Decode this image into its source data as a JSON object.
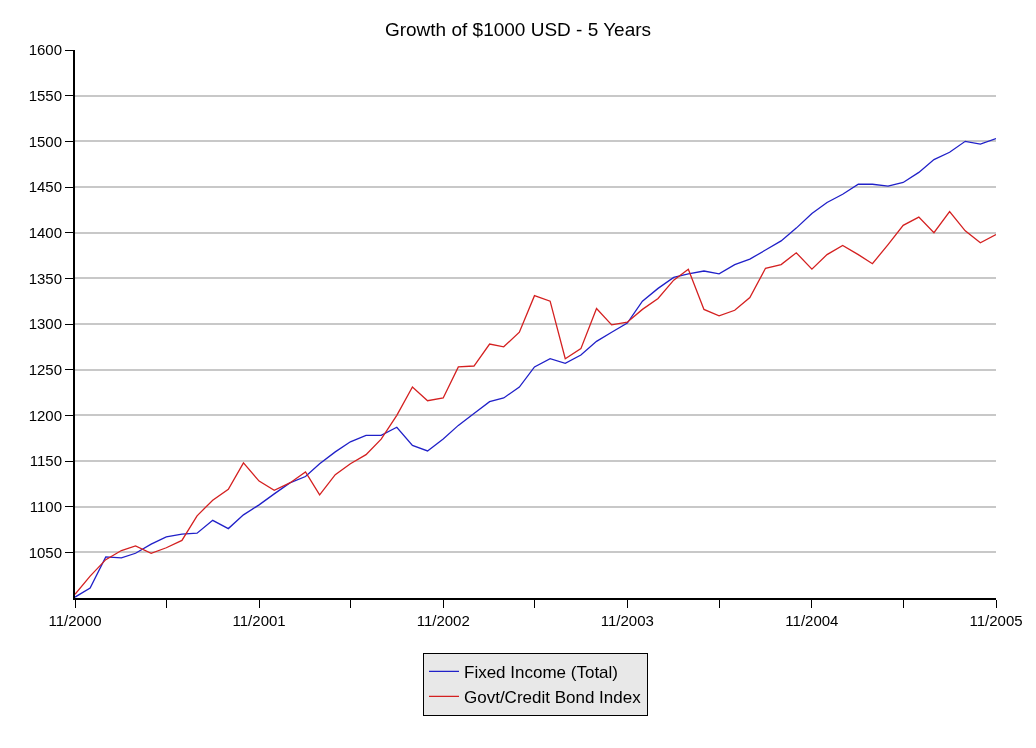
{
  "chart_data": {
    "type": "line",
    "title": "Growth of $1000 USD - 5 Years",
    "x": [
      "2000-11",
      "2000-12",
      "2001-01",
      "2001-02",
      "2001-03",
      "2001-04",
      "2001-05",
      "2001-06",
      "2001-07",
      "2001-08",
      "2001-09",
      "2001-10",
      "2001-11",
      "2001-12",
      "2002-01",
      "2002-02",
      "2002-03",
      "2002-04",
      "2002-05",
      "2002-06",
      "2002-07",
      "2002-08",
      "2002-09",
      "2002-10",
      "2002-11",
      "2002-12",
      "2003-01",
      "2003-02",
      "2003-03",
      "2003-04",
      "2003-05",
      "2003-06",
      "2003-07",
      "2003-08",
      "2003-09",
      "2003-10",
      "2003-11",
      "2003-12",
      "2004-01",
      "2004-02",
      "2004-03",
      "2004-04",
      "2004-05",
      "2004-06",
      "2004-07",
      "2004-08",
      "2004-09",
      "2004-10",
      "2004-11",
      "2004-12",
      "2005-01",
      "2005-02",
      "2005-03",
      "2005-04",
      "2005-05",
      "2005-06",
      "2005-07",
      "2005-08",
      "2005-09",
      "2005-10",
      "2005-11"
    ],
    "series": [
      {
        "name": "Fixed Income (Total)",
        "color": "#2020c8",
        "values": [
          1001,
          1011,
          1045,
          1044,
          1049,
          1059,
          1067,
          1070,
          1071,
          1085,
          1076,
          1091,
          1102,
          1114,
          1126,
          1133,
          1147,
          1160,
          1171,
          1178,
          1178,
          1187,
          1167,
          1161,
          1174,
          1189,
          1202,
          1215,
          1219,
          1231,
          1253,
          1262,
          1257,
          1266,
          1281,
          1291,
          1301,
          1325,
          1339,
          1351,
          1355,
          1358,
          1355,
          1365,
          1371,
          1381,
          1391,
          1405,
          1421,
          1433,
          1442,
          1453,
          1453,
          1451,
          1455,
          1466,
          1480,
          1488,
          1500,
          1497,
          1503
        ]
      },
      {
        "name": "Govt/Credit Bond Index",
        "color": "#d42020",
        "values": [
          1004,
          1024,
          1042,
          1052,
          1057,
          1049,
          1055,
          1063,
          1090,
          1107,
          1119,
          1148,
          1128,
          1118,
          1126,
          1138,
          1113,
          1135,
          1147,
          1157,
          1174,
          1200,
          1231,
          1216,
          1219,
          1253,
          1254,
          1278,
          1275,
          1291,
          1331,
          1325,
          1262,
          1273,
          1317,
          1299,
          1302,
          1316,
          1328,
          1348,
          1360,
          1316,
          1309,
          1315,
          1329,
          1361,
          1365,
          1378,
          1360,
          1376,
          1386,
          1376,
          1366,
          1387,
          1408,
          1417,
          1400,
          1423,
          1402,
          1389,
          1398
        ]
      }
    ],
    "xlim": [
      "2000-11",
      "2005-11"
    ],
    "xticks": [
      {
        "value": "2000-11",
        "label": "11/2000"
      },
      {
        "value": "2001-05",
        "label": null
      },
      {
        "value": "2001-11",
        "label": "11/2001"
      },
      {
        "value": "2002-05",
        "label": null
      },
      {
        "value": "2002-11",
        "label": "11/2002"
      },
      {
        "value": "2003-05",
        "label": null
      },
      {
        "value": "2003-11",
        "label": "11/2003"
      },
      {
        "value": "2004-05",
        "label": null
      },
      {
        "value": "2004-11",
        "label": "11/2004"
      },
      {
        "value": "2005-05",
        "label": null
      },
      {
        "value": "2005-11",
        "label": "11/2005"
      }
    ],
    "ylim": [
      1000,
      1600
    ],
    "yticks": [
      1050,
      1100,
      1150,
      1200,
      1250,
      1300,
      1350,
      1400,
      1450,
      1500,
      1550,
      1600
    ],
    "grid": "y",
    "legend": "bottom",
    "line_style": "solid"
  }
}
